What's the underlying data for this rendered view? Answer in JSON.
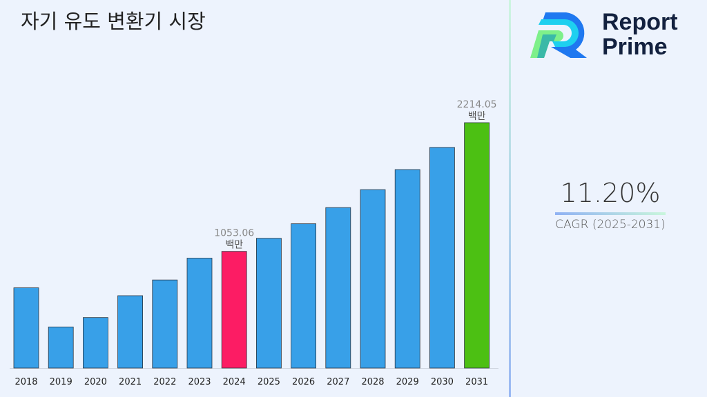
{
  "title": "자기 유도 변환기 시장",
  "logo": {
    "line1": "Report",
    "line2": "Prime"
  },
  "cagr": {
    "value": "11.20%",
    "label": "CAGR (2025-2031)"
  },
  "chart_data": {
    "type": "bar",
    "title": "자기 유도 변환기 시장",
    "categories": [
      "2018",
      "2019",
      "2020",
      "2021",
      "2022",
      "2023",
      "2024",
      "2025",
      "2026",
      "2027",
      "2028",
      "2029",
      "2030",
      "2031"
    ],
    "values": [
      724,
      371,
      456,
      653,
      795,
      992,
      1053.06,
      1171,
      1302,
      1448,
      1610,
      1791,
      1991,
      2214.05
    ],
    "ylim": [
      0,
      2214.05
    ],
    "grid": false,
    "unit": "백만",
    "annotations": [
      {
        "category": "2024",
        "value": "1053.06",
        "unit": "백만"
      },
      {
        "category": "2031",
        "value": "2214.05",
        "unit": "백만"
      }
    ],
    "colors": {
      "default": "#38a0e8",
      "highlight_2024": "#fc1c64",
      "highlight_2031": "#4cc013"
    }
  }
}
